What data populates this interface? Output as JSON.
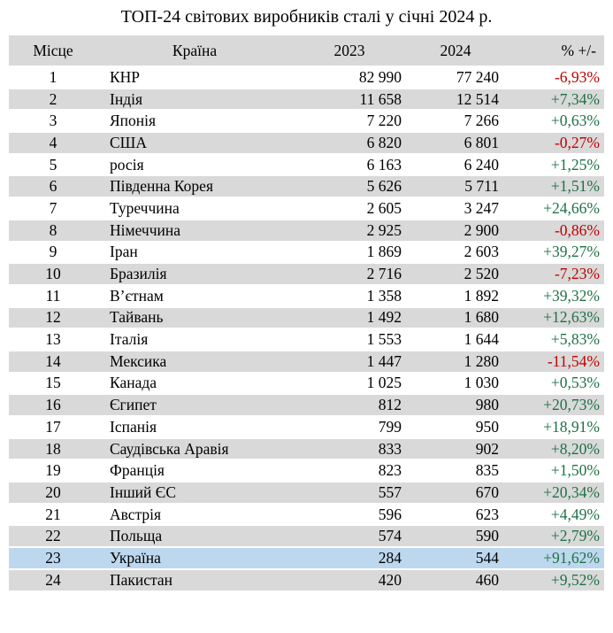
{
  "title": "ТОП-24 світових виробників сталі у січні 2024 р.",
  "colors": {
    "header_bg": "#d9d9d9",
    "row_shade_bg": "#d9d9d9",
    "row_plain_bg": "#ffffff",
    "highlight_bg": "#bdd7ee",
    "positive_change": "#1e7145",
    "negative_change": "#c00000",
    "text": "#000000"
  },
  "table": {
    "columns": [
      "Місце",
      "Країна",
      "2023",
      "2024",
      "% +/-"
    ],
    "rows": [
      {
        "rank": "1",
        "country": "КНР",
        "y2023": "82 990",
        "y2024": "77 240",
        "change": "-6,93%"
      },
      {
        "rank": "2",
        "country": "Індія",
        "y2023": "11 658",
        "y2024": "12 514",
        "change": "+7,34%"
      },
      {
        "rank": "3",
        "country": "Японія",
        "y2023": "7 220",
        "y2024": "7 266",
        "change": "+0,63%"
      },
      {
        "rank": "4",
        "country": "США",
        "y2023": "6 820",
        "y2024": "6 801",
        "change": "-0,27%"
      },
      {
        "rank": "5",
        "country": "росія",
        "y2023": "6 163",
        "y2024": "6 240",
        "change": "+1,25%"
      },
      {
        "rank": "6",
        "country": "Південна Корея",
        "y2023": "5 626",
        "y2024": "5 711",
        "change": "+1,51%"
      },
      {
        "rank": "7",
        "country": "Туреччина",
        "y2023": "2 605",
        "y2024": "3 247",
        "change": "+24,66%"
      },
      {
        "rank": "8",
        "country": "Німеччина",
        "y2023": "2 925",
        "y2024": "2 900",
        "change": "-0,86%"
      },
      {
        "rank": "9",
        "country": "Іран",
        "y2023": "1 869",
        "y2024": "2 603",
        "change": "+39,27%"
      },
      {
        "rank": "10",
        "country": "Бразилія",
        "y2023": "2 716",
        "y2024": "2 520",
        "change": "-7,23%"
      },
      {
        "rank": "11",
        "country": "В’єтнам",
        "y2023": "1 358",
        "y2024": "1 892",
        "change": "+39,32%"
      },
      {
        "rank": "12",
        "country": "Тайвань",
        "y2023": "1 492",
        "y2024": "1 680",
        "change": "+12,63%"
      },
      {
        "rank": "13",
        "country": "Італія",
        "y2023": "1 553",
        "y2024": "1 644",
        "change": "+5,83%"
      },
      {
        "rank": "14",
        "country": "Мексика",
        "y2023": "1 447",
        "y2024": "1 280",
        "change": "-11,54%"
      },
      {
        "rank": "15",
        "country": "Канада",
        "y2023": "1 025",
        "y2024": "1 030",
        "change": "+0,53%"
      },
      {
        "rank": "16",
        "country": "Єгипет",
        "y2023": "812",
        "y2024": "980",
        "change": "+20,73%"
      },
      {
        "rank": "17",
        "country": "Іспанія",
        "y2023": "799",
        "y2024": "950",
        "change": "+18,91%"
      },
      {
        "rank": "18",
        "country": "Саудівська Аравія",
        "y2023": "833",
        "y2024": "902",
        "change": "+8,20%"
      },
      {
        "rank": "19",
        "country": "Франція",
        "y2023": "823",
        "y2024": "835",
        "change": "+1,50%"
      },
      {
        "rank": "20",
        "country": "Інший ЄС",
        "y2023": "557",
        "y2024": "670",
        "change": "+20,34%"
      },
      {
        "rank": "21",
        "country": "Австрія",
        "y2023": "596",
        "y2024": "623",
        "change": "+4,49%"
      },
      {
        "rank": "22",
        "country": "Польща",
        "y2023": "574",
        "y2024": "590",
        "change": "+2,79%"
      },
      {
        "rank": "23",
        "country": "Україна",
        "y2023": "284",
        "y2024": "544",
        "change": "+91,62%",
        "highlight": true
      },
      {
        "rank": "24",
        "country": "Пакистан",
        "y2023": "420",
        "y2024": "460",
        "change": "+9,52%"
      }
    ]
  },
  "chart_data": {
    "type": "table",
    "title": "ТОП-24 світових виробників сталі у січні 2024 р.",
    "columns": [
      "Місце",
      "Країна",
      "2023",
      "2024",
      "% +/-"
    ],
    "rows": [
      [
        1,
        "КНР",
        82990,
        77240,
        "-6,93%"
      ],
      [
        2,
        "Індія",
        11658,
        12514,
        "+7,34%"
      ],
      [
        3,
        "Японія",
        7220,
        7266,
        "+0,63%"
      ],
      [
        4,
        "США",
        6820,
        6801,
        "-0,27%"
      ],
      [
        5,
        "росія",
        6163,
        6240,
        "+1,25%"
      ],
      [
        6,
        "Південна Корея",
        5626,
        5711,
        "+1,51%"
      ],
      [
        7,
        "Туреччина",
        2605,
        3247,
        "+24,66%"
      ],
      [
        8,
        "Німеччина",
        2925,
        2900,
        "-0,86%"
      ],
      [
        9,
        "Іран",
        1869,
        2603,
        "+39,27%"
      ],
      [
        10,
        "Бразилія",
        2716,
        2520,
        "-7,23%"
      ],
      [
        11,
        "В’єтнам",
        1358,
        1892,
        "+39,32%"
      ],
      [
        12,
        "Тайвань",
        1492,
        1680,
        "+12,63%"
      ],
      [
        13,
        "Італія",
        1553,
        1644,
        "+5,83%"
      ],
      [
        14,
        "Мексика",
        1447,
        1280,
        "-11,54%"
      ],
      [
        15,
        "Канада",
        1025,
        1030,
        "+0,53%"
      ],
      [
        16,
        "Єгипет",
        812,
        980,
        "+20,73%"
      ],
      [
        17,
        "Іспанія",
        799,
        950,
        "+18,91%"
      ],
      [
        18,
        "Саудівська Аравія",
        833,
        902,
        "+8,20%"
      ],
      [
        19,
        "Франція",
        823,
        835,
        "+1,50%"
      ],
      [
        20,
        "Інший ЄС",
        557,
        670,
        "+20,34%"
      ],
      [
        21,
        "Австрія",
        596,
        623,
        "+4,49%"
      ],
      [
        22,
        "Польща",
        574,
        590,
        "+2,79%"
      ],
      [
        23,
        "Україна",
        284,
        544,
        "+91,62%"
      ],
      [
        24,
        "Пакистан",
        420,
        460,
        "+9,52%"
      ]
    ],
    "highlighted_row": "Україна",
    "notes": "alternating white/gray rows; Ukraine row highlighted light blue; negative % in red, positive % in green"
  }
}
